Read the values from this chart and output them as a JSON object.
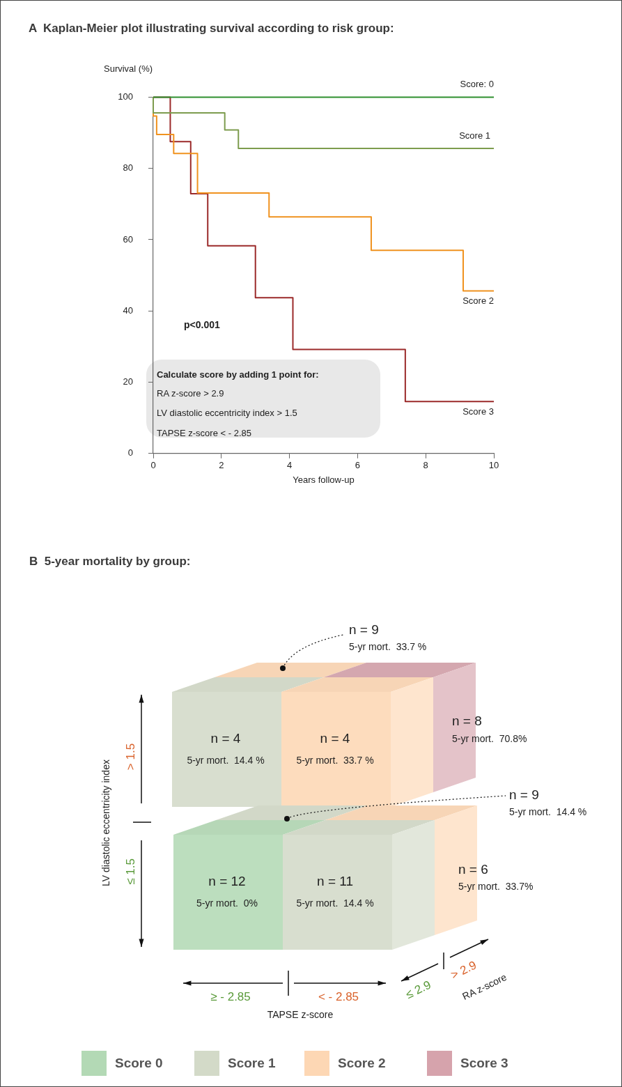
{
  "chart_data": [
    {
      "type": "step",
      "title": "A  Kaplan-Meier plot illustrating survival according to risk group:",
      "xlabel": "Years follow-up",
      "ylabel": "Survival (%)",
      "xlim": [
        0,
        10
      ],
      "ylim": [
        0,
        100
      ],
      "xticks": [
        0,
        2,
        4,
        6,
        8,
        10
      ],
      "yticks": [
        0,
        20,
        40,
        60,
        80,
        100
      ],
      "grid": false,
      "legend": false,
      "marker": "none",
      "series": [
        {
          "name": "Score: 0",
          "color": "#2f8f2f",
          "x": [
            0,
            10
          ],
          "values": [
            100,
            100
          ]
        },
        {
          "name": "Score 1",
          "color": "#7d9c4e",
          "x": [
            0,
            0,
            2.1,
            2.5,
            10
          ],
          "values": [
            100,
            95.6,
            90.8,
            85.6,
            85.6
          ]
        },
        {
          "name": "Score 2",
          "color": "#f0921f",
          "x": [
            0,
            0,
            0.1,
            0.6,
            1.3,
            3.4,
            6.4,
            9.1,
            10
          ],
          "values": [
            100,
            94.7,
            89.5,
            84.2,
            73.1,
            66.4,
            57.0,
            45.6,
            45.6
          ]
        },
        {
          "name": "Score 3",
          "color": "#9b2a2a",
          "x": [
            0,
            0.5,
            1.1,
            1.6,
            3.0,
            4.1,
            7.4,
            10
          ],
          "values": [
            100,
            87.5,
            72.9,
            58.3,
            43.7,
            29.2,
            14.6,
            14.6
          ]
        }
      ],
      "annotations": [
        "p<0.001",
        "Calculate score by adding 1 point for:",
        "RA z-score > 2.9",
        "LV diastolic eccentricity index > 1.5",
        "TAPSE z-score < - 2.85"
      ]
    },
    {
      "type": "other",
      "title": "B  5-year mortality by group:",
      "xlabel": "TAPSE z-score",
      "ylabel": "LV diastolic eccentricity index",
      "categories": [
        "Score 0",
        "Score 1",
        "Score 2",
        "Score 3"
      ],
      "colors": [
        "#b3d9b5",
        "#d3dac8",
        "#fdd7b4",
        "#d6a3ac"
      ],
      "annotations": [
        "n = 9",
        "5-yr mort.  33.7 %",
        "n = 4",
        "5-yr mort.  14.4 %",
        "n = 4",
        "5-yr mort.  33.7 %",
        "n = 8",
        "5-yr mort.  70.8%",
        "n = 9",
        "5-yr mort.  14.4 %",
        "n = 12",
        "5-yr mort.  0%",
        "n = 11",
        "5-yr mort.  14.4 %",
        "n = 6",
        "5-yr mort.  33.7%",
        "> 1.5",
        "≤ 1.5",
        "≥ - 2.85",
        "< - 2.85",
        "≤ 2.9",
        "> 2.9",
        "RA z-score"
      ]
    }
  ]
}
